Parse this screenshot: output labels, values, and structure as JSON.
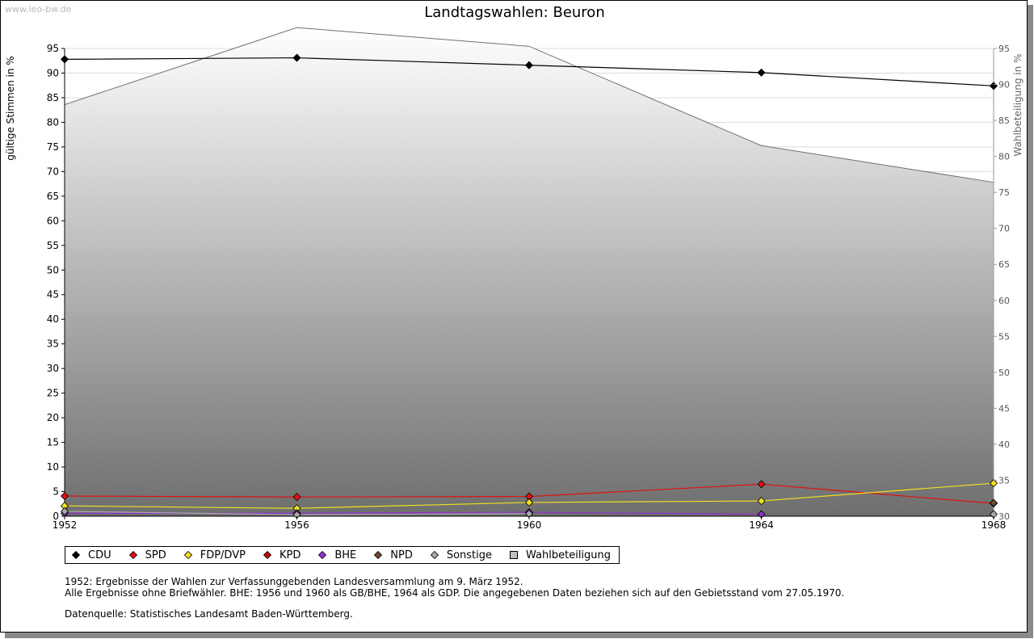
{
  "watermark": "www.leo-bw.de",
  "chart_data": {
    "type": "line",
    "title": "Landtagswahlen: Beuron",
    "ylabel": "gültige Stimmen in %",
    "y2label": "Wahlbeteiligung in %",
    "x": [
      "1952",
      "1956",
      "1960",
      "1964",
      "1968"
    ],
    "ylim": [
      0,
      95
    ],
    "yticks": [
      0,
      5,
      10,
      15,
      20,
      25,
      30,
      35,
      40,
      45,
      50,
      55,
      60,
      65,
      70,
      75,
      80,
      85,
      90,
      95
    ],
    "y2lim": [
      30,
      95
    ],
    "y2ticks": [
      30,
      35,
      40,
      45,
      50,
      55,
      60,
      65,
      70,
      75,
      80,
      85,
      90,
      95
    ],
    "grid": true,
    "legend_position": "bottom-left",
    "area": {
      "name": "Wahlbeteiligung",
      "axis": "right",
      "values": [
        87.2,
        97.9,
        95.3,
        81.5,
        76.4
      ],
      "color": "#808080"
    },
    "series": [
      {
        "name": "CDU",
        "color": "#000000",
        "values": [
          92.8,
          93.1,
          91.6,
          90.1,
          87.4
        ]
      },
      {
        "name": "SPD",
        "color": "#e01010",
        "values": [
          4.1,
          3.9,
          4.0,
          6.5,
          2.6
        ]
      },
      {
        "name": "FDP/DVP",
        "color": "#f0e020",
        "values": [
          2.1,
          1.6,
          2.8,
          3.1,
          6.7
        ]
      },
      {
        "name": "KPD",
        "color": "#c00000",
        "values": [
          null,
          null,
          null,
          null,
          null
        ]
      },
      {
        "name": "BHE",
        "color": "#9030d0",
        "values": [
          0.6,
          0.6,
          0.8,
          0.4,
          null
        ]
      },
      {
        "name": "NPD",
        "color": "#6a4a30",
        "values": [
          null,
          null,
          null,
          null,
          2.7
        ]
      },
      {
        "name": "Sonstige",
        "color": "#a8a8a8",
        "values": [
          1.0,
          0.3,
          0.5,
          null,
          0.4
        ]
      }
    ]
  },
  "legend": [
    {
      "label": "CDU",
      "shape": "diamond",
      "color": "#000000"
    },
    {
      "label": "SPD",
      "shape": "diamond",
      "color": "#e01010"
    },
    {
      "label": "FDP/DVP",
      "shape": "diamond",
      "color": "#f0e020"
    },
    {
      "label": "KPD",
      "shape": "diamond",
      "color": "#c00000"
    },
    {
      "label": "BHE",
      "shape": "diamond",
      "color": "#9030d0"
    },
    {
      "label": "NPD",
      "shape": "diamond",
      "color": "#6a4a30"
    },
    {
      "label": "Sonstige",
      "shape": "diamond",
      "color": "#a8a8a8"
    },
    {
      "label": "Wahlbeteiligung",
      "shape": "square",
      "color": "#c0c0c0"
    }
  ],
  "notes": {
    "line1": "1952: Ergebnisse der Wahlen zur Verfassunggebenden Landesversammlung am 9. März 1952.",
    "line2": "Alle Ergebnisse ohne Briefwähler. BHE: 1956 und 1960 als GB/BHE, 1964 als GDP. Die angegebenen Daten beziehen sich auf den Gebietsstand vom 27.05.1970.",
    "source": "Datenquelle: Statistisches Landesamt Baden-Württemberg."
  }
}
